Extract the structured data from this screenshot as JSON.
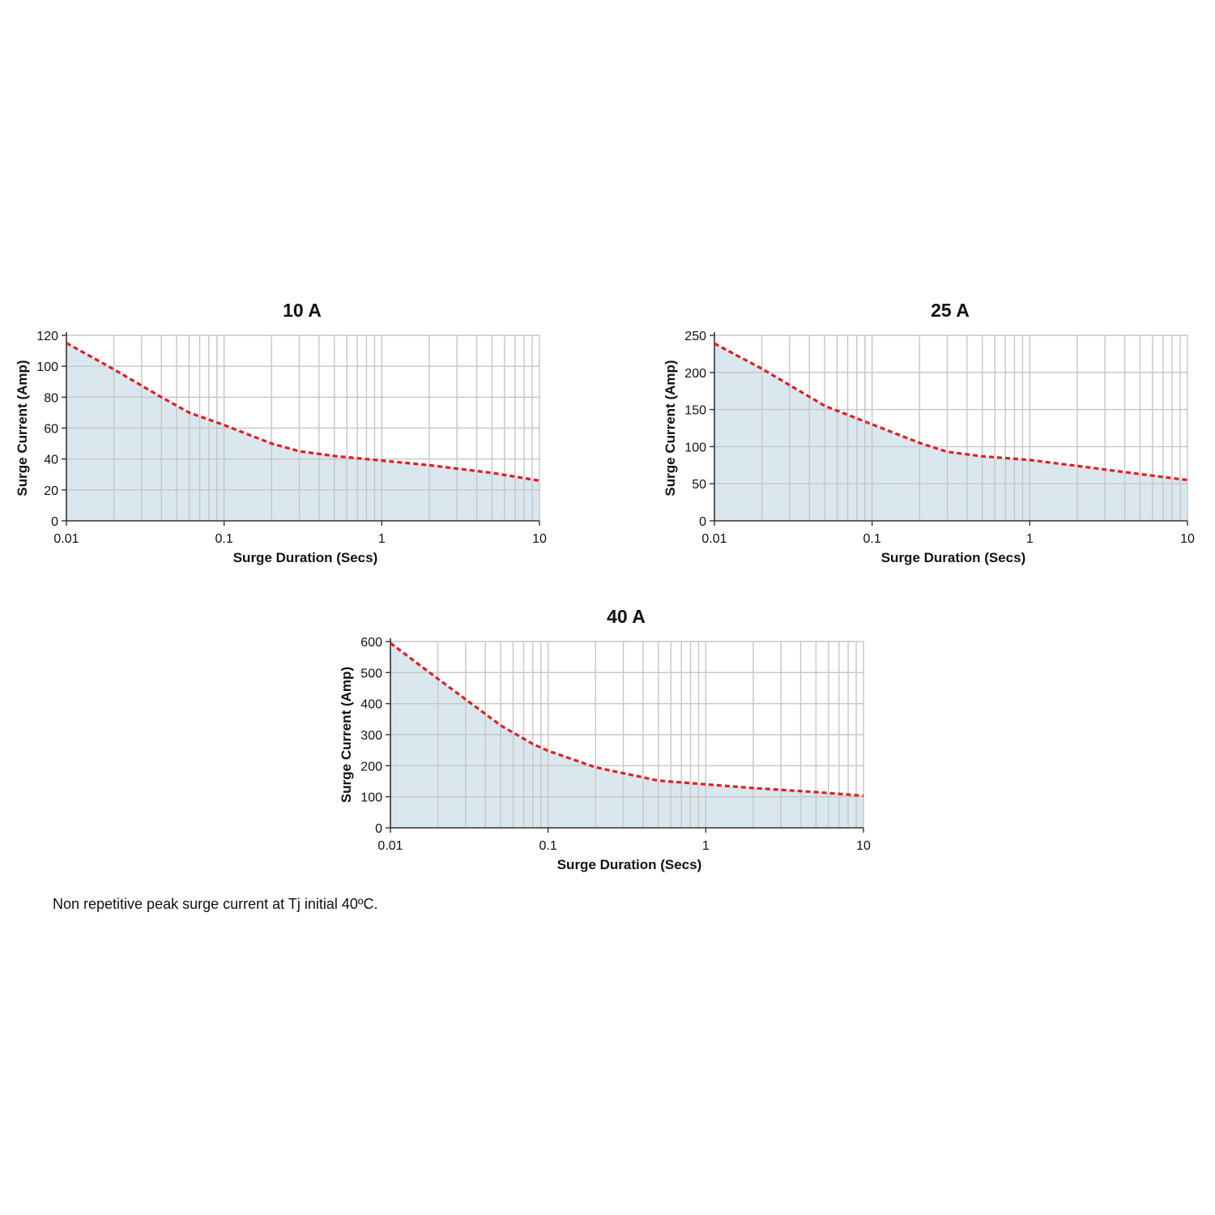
{
  "footnote": "Non repetitive peak surge current at Tj initial 40ºC.",
  "colors": {
    "fill": "#dae7ee",
    "curve": "#e01e24",
    "grid": "#c6c6c6",
    "axis": "#333333"
  },
  "chart_data": [
    {
      "type": "area",
      "title": "10 A",
      "xlabel": "Surge Duration (Secs)",
      "ylabel": "Surge Current (Amp)",
      "xscale": "log",
      "xlim": [
        0.01,
        10
      ],
      "ylim": [
        0,
        120
      ],
      "xticks": [
        "0.01",
        "0.1",
        "1",
        "10"
      ],
      "yticks": [
        0,
        20,
        40,
        60,
        80,
        100,
        120
      ],
      "grid": true,
      "series": [
        {
          "line_style": "dashed",
          "x": [
            0.01,
            0.02,
            0.04,
            0.06,
            0.1,
            0.2,
            0.3,
            0.5,
            1,
            2,
            5,
            10
          ],
          "y": [
            115,
            98,
            80,
            70,
            62,
            50,
            45,
            42,
            39,
            36,
            31,
            26
          ]
        }
      ]
    },
    {
      "type": "area",
      "title": "25 A",
      "xlabel": "Surge Duration (Secs)",
      "ylabel": "Surge Current (Amp)",
      "xscale": "log",
      "xlim": [
        0.01,
        10
      ],
      "ylim": [
        0,
        250
      ],
      "xticks": [
        "0.01",
        "0.1",
        "1",
        "10"
      ],
      "yticks": [
        0,
        50,
        100,
        150,
        200,
        250
      ],
      "grid": true,
      "series": [
        {
          "line_style": "dashed",
          "x": [
            0.01,
            0.02,
            0.05,
            0.1,
            0.2,
            0.3,
            0.5,
            1,
            2,
            5,
            10
          ],
          "y": [
            239,
            205,
            155,
            130,
            105,
            93,
            87,
            82,
            74,
            63,
            55
          ]
        }
      ]
    },
    {
      "type": "area",
      "title": "40 A",
      "xlabel": "Surge Duration (Secs)",
      "ylabel": "Surge Current (Amp)",
      "xscale": "log",
      "xlim": [
        0.01,
        10
      ],
      "ylim": [
        0,
        600
      ],
      "xticks": [
        "0.01",
        "0.1",
        "1",
        "10"
      ],
      "yticks": [
        0,
        100,
        200,
        300,
        400,
        500,
        600
      ],
      "grid": true,
      "series": [
        {
          "line_style": "dashed",
          "x": [
            0.01,
            0.02,
            0.05,
            0.08,
            0.1,
            0.2,
            0.5,
            1,
            2,
            5,
            10
          ],
          "y": [
            595,
            480,
            330,
            270,
            248,
            195,
            152,
            140,
            128,
            115,
            103
          ]
        }
      ]
    }
  ]
}
